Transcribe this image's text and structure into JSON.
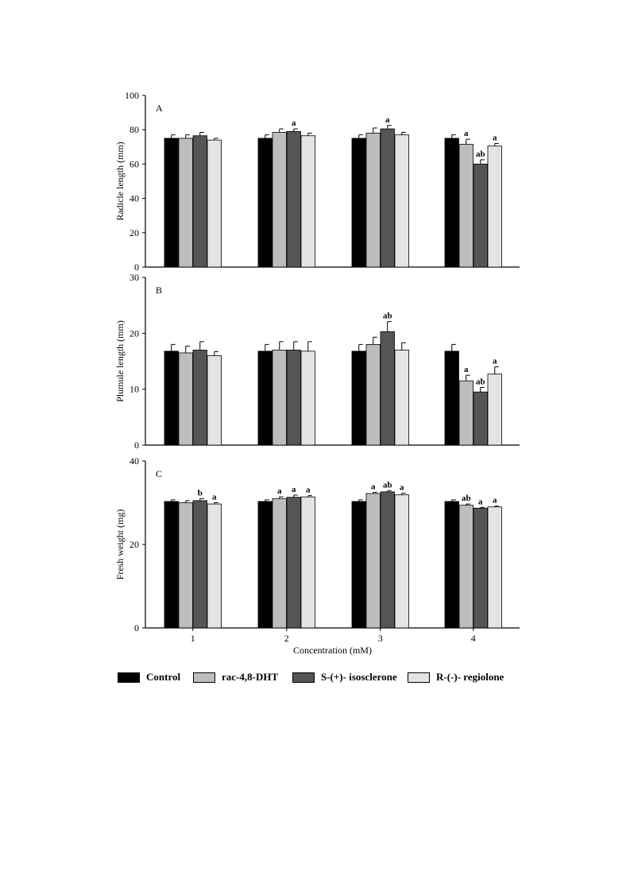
{
  "chart_data": [
    {
      "panel_label": "A",
      "type": "bar",
      "ylabel": "Radicle length (mm)",
      "ylim": [
        0,
        100
      ],
      "yticks": [
        0,
        20,
        40,
        60,
        80,
        100
      ],
      "categories": [
        "1",
        "2",
        "3",
        "4"
      ],
      "series": [
        {
          "name": "Control",
          "values": [
            75,
            75,
            75,
            75
          ],
          "errors": [
            2,
            2,
            2,
            2
          ],
          "labels": [
            "",
            "",
            "",
            ""
          ]
        },
        {
          "name": "rac-4,8-DHT",
          "values": [
            75,
            78.5,
            78,
            71.5
          ],
          "errors": [
            2,
            2,
            3,
            3
          ],
          "labels": [
            "",
            "",
            "",
            "a"
          ]
        },
        {
          "name": "S-(+)- isosclerone",
          "values": [
            76.5,
            79,
            80.5,
            60
          ],
          "errors": [
            2,
            1.5,
            2,
            2.5
          ],
          "labels": [
            "",
            "a",
            "a",
            "ab"
          ]
        },
        {
          "name": "R-(-)- regiolone",
          "values": [
            74,
            76.5,
            77,
            70.5
          ],
          "errors": [
            1,
            1.5,
            1.5,
            1.5
          ],
          "labels": [
            "",
            "",
            "",
            "a"
          ]
        }
      ]
    },
    {
      "panel_label": "B",
      "type": "bar",
      "ylabel": "Plumule length (mm)",
      "ylim": [
        0,
        30
      ],
      "yticks": [
        0,
        10,
        20,
        30
      ],
      "categories": [
        "1",
        "2",
        "3",
        "4"
      ],
      "series": [
        {
          "name": "Control",
          "values": [
            16.8,
            16.8,
            16.8,
            16.8
          ],
          "errors": [
            1.2,
            1.2,
            1.2,
            1.2
          ],
          "labels": [
            "",
            "",
            "",
            ""
          ]
        },
        {
          "name": "rac-4,8-DHT",
          "values": [
            16.5,
            17,
            18,
            11.5
          ],
          "errors": [
            1.2,
            1.5,
            1.3,
            1.0
          ],
          "labels": [
            "",
            "",
            "",
            "a"
          ]
        },
        {
          "name": "S-(+)- isosclerone",
          "values": [
            17,
            17,
            20.3,
            9.5
          ],
          "errors": [
            1.5,
            1.5,
            1.8,
            0.8
          ],
          "labels": [
            "",
            "",
            "ab",
            "ab"
          ]
        },
        {
          "name": "R-(-)- regiolone",
          "values": [
            16,
            16.8,
            17,
            12.7
          ],
          "errors": [
            0.7,
            1.7,
            1.3,
            1.3
          ],
          "labels": [
            "",
            "",
            "",
            "a"
          ]
        }
      ]
    },
    {
      "panel_label": "C",
      "type": "bar",
      "ylabel": "Fresh weight (mg)",
      "xlabel": "Concentration (mM)",
      "ylim": [
        0,
        40
      ],
      "yticks": [
        0,
        20,
        40
      ],
      "categories": [
        "1",
        "2",
        "3",
        "4"
      ],
      "series": [
        {
          "name": "Control",
          "values": [
            30.3,
            30.3,
            30.3,
            30.3
          ],
          "errors": [
            0.4,
            0.4,
            0.4,
            0.4
          ],
          "labels": [
            "",
            "",
            "",
            ""
          ]
        },
        {
          "name": "rac-4,8-DHT",
          "values": [
            30,
            31,
            32.2,
            29.4
          ],
          "errors": [
            0.5,
            0.4,
            0.3,
            0.3
          ],
          "labels": [
            "",
            "a",
            "a",
            "ab"
          ]
        },
        {
          "name": "S-(+)- isosclerone",
          "values": [
            30.5,
            31.3,
            32.6,
            28.7
          ],
          "errors": [
            0.5,
            0.5,
            0.3,
            0.2
          ],
          "labels": [
            "b",
            "a",
            "ab",
            "a"
          ]
        },
        {
          "name": "R-(-)- regiolone",
          "values": [
            29.7,
            31.4,
            31.9,
            29
          ],
          "errors": [
            0.3,
            0.3,
            0.4,
            0.2
          ],
          "labels": [
            "a",
            "a",
            "a",
            "a"
          ]
        }
      ]
    }
  ],
  "legend": {
    "items": [
      {
        "label": "Control",
        "color": "#000000"
      },
      {
        "label": "rac-4,8-DHT",
        "color": "#bdbdbd"
      },
      {
        "label": "S-(+)- isosclerone",
        "color": "#555555"
      },
      {
        "label": "R-(-)- regiolone",
        "color": "#e4e4e4"
      }
    ]
  }
}
